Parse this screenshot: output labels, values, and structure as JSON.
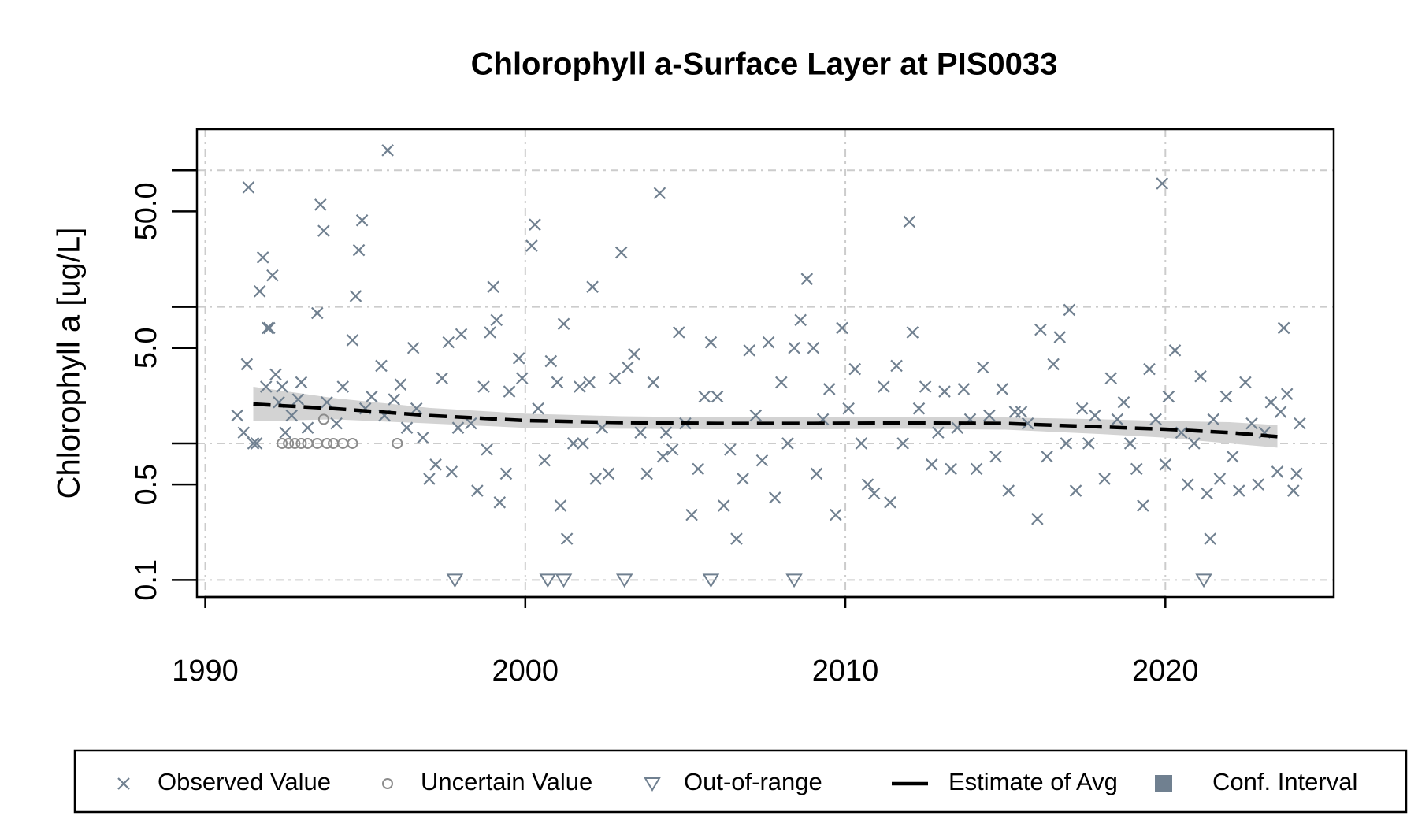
{
  "chart_data": {
    "type": "scatter",
    "title": "Chlorophyll a-Surface Layer at PIS0033",
    "y_label": "Chlorophyll a [ug/L]",
    "y_scale": "log",
    "grid": true,
    "xlim": [
      1989.74,
      2025.26
    ],
    "ylim": [
      0.075,
      200
    ],
    "xticks": [
      1990,
      2000,
      2010,
      2020
    ],
    "yticks": [
      {
        "value": 0.1,
        "label": "0.1"
      },
      {
        "value": 0.5,
        "label": "0.5"
      },
      {
        "value": 5,
        "label": "5.0"
      },
      {
        "value": 50,
        "label": "50.0"
      }
    ],
    "yminor_ticks": [
      1,
      10,
      100
    ],
    "legend_position": "bottom",
    "series": [
      {
        "name": "Observed Value",
        "marker": "x",
        "color": "#708090",
        "x": [
          1991.0,
          1991.2,
          1991.3,
          1991.35,
          1991.5,
          1991.6,
          1991.7,
          1991.8,
          1991.9,
          1991.95,
          1992.0,
          1992.1,
          1992.2,
          1992.3,
          1992.4,
          1992.5,
          1992.7,
          1992.9,
          1993.0,
          1993.2,
          1993.5,
          1993.6,
          1993.7,
          1993.8,
          1994.1,
          1994.3,
          1994.6,
          1994.7,
          1994.8,
          1994.9,
          1995.0,
          1995.2,
          1995.5,
          1995.6,
          1995.7,
          1995.9,
          1996.1,
          1996.3,
          1996.5,
          1996.6,
          1996.8,
          1997.0,
          1997.2,
          1997.4,
          1997.6,
          1997.7,
          1997.9,
          1998.0,
          1998.3,
          1998.5,
          1998.7,
          1998.8,
          1998.9,
          1999.0,
          1999.1,
          1999.2,
          1999.4,
          1999.5,
          1999.8,
          1999.9,
          2000.2,
          2000.3,
          2000.4,
          2000.6,
          2000.8,
          2001.0,
          2001.1,
          2001.2,
          2001.3,
          2001.5,
          2001.7,
          2001.8,
          2002.0,
          2002.1,
          2002.2,
          2002.4,
          2002.6,
          2002.8,
          2003.0,
          2003.2,
          2003.4,
          2003.6,
          2003.8,
          2004.0,
          2004.2,
          2004.3,
          2004.4,
          2004.6,
          2004.8,
          2005.0,
          2005.2,
          2005.4,
          2005.6,
          2005.8,
          2006.0,
          2006.2,
          2006.4,
          2006.6,
          2006.8,
          2007.0,
          2007.2,
          2007.4,
          2007.6,
          2007.8,
          2008.0,
          2008.2,
          2008.4,
          2008.6,
          2008.8,
          2009.0,
          2009.1,
          2009.3,
          2009.5,
          2009.7,
          2009.9,
          2010.1,
          2010.3,
          2010.5,
          2010.7,
          2010.9,
          2011.2,
          2011.4,
          2011.6,
          2011.8,
          2012.0,
          2012.1,
          2012.3,
          2012.5,
          2012.7,
          2012.9,
          2013.1,
          2013.3,
          2013.5,
          2013.7,
          2013.9,
          2014.1,
          2014.3,
          2014.5,
          2014.7,
          2014.9,
          2015.1,
          2015.3,
          2015.5,
          2015.7,
          2016.0,
          2016.1,
          2016.3,
          2016.5,
          2016.7,
          2016.9,
          2017.0,
          2017.2,
          2017.4,
          2017.6,
          2017.8,
          2018.1,
          2018.3,
          2018.5,
          2018.7,
          2018.9,
          2019.1,
          2019.3,
          2019.5,
          2019.7,
          2019.9,
          2020.0,
          2020.1,
          2020.3,
          2020.5,
          2020.7,
          2020.9,
          2021.1,
          2021.3,
          2021.4,
          2021.5,
          2021.7,
          2021.9,
          2022.1,
          2022.3,
          2022.5,
          2022.7,
          2022.9,
          2023.1,
          2023.3,
          2023.5,
          2023.6,
          2023.7,
          2023.8,
          2024.0,
          2024.1,
          2024.2
        ],
        "values": [
          1.6,
          1.2,
          3.8,
          75,
          1.0,
          1.0,
          13,
          23,
          2.6,
          7,
          7,
          17,
          3.2,
          2.0,
          2.6,
          1.2,
          1.6,
          2.1,
          2.8,
          1.3,
          9,
          56,
          36,
          2.0,
          1.4,
          2.6,
          5.7,
          12,
          26,
          43,
          1.8,
          2.2,
          3.7,
          1.6,
          140,
          2.1,
          2.7,
          1.3,
          5.0,
          1.8,
          1.1,
          0.55,
          0.7,
          3.0,
          5.5,
          0.62,
          1.3,
          6.3,
          1.4,
          0.45,
          2.6,
          0.9,
          6.5,
          14,
          8,
          0.37,
          0.6,
          2.4,
          4.2,
          3.0,
          28,
          40,
          1.8,
          0.75,
          4.0,
          2.8,
          0.35,
          7.5,
          0.2,
          1.0,
          2.6,
          1.0,
          2.8,
          14,
          0.55,
          1.3,
          0.6,
          3.0,
          25,
          3.6,
          4.5,
          1.2,
          0.6,
          2.8,
          68,
          0.8,
          1.2,
          0.9,
          6.5,
          1.4,
          0.3,
          0.65,
          2.2,
          5.5,
          2.2,
          0.35,
          0.9,
          0.2,
          0.55,
          4.8,
          1.6,
          0.75,
          5.5,
          0.4,
          2.8,
          1.0,
          5.0,
          8,
          16,
          5.0,
          0.6,
          1.5,
          2.5,
          0.3,
          7,
          1.8,
          3.5,
          1.0,
          0.5,
          0.43,
          2.6,
          0.37,
          3.7,
          1.0,
          42,
          6.5,
          1.8,
          2.6,
          0.7,
          1.2,
          2.4,
          0.65,
          1.3,
          2.5,
          1.5,
          0.65,
          3.6,
          1.6,
          0.8,
          2.5,
          0.45,
          1.7,
          1.7,
          1.4,
          0.28,
          6.8,
          0.8,
          3.8,
          6.0,
          1.0,
          9.5,
          0.45,
          1.8,
          1.0,
          1.6,
          0.55,
          3.0,
          1.5,
          2.0,
          1.0,
          0.65,
          0.35,
          3.5,
          1.5,
          80,
          0.7,
          2.2,
          4.8,
          1.2,
          0.5,
          1.0,
          3.1,
          0.43,
          0.2,
          1.5,
          0.55,
          2.2,
          0.8,
          0.45,
          2.8,
          1.4,
          0.5,
          1.2,
          2.0,
          0.62,
          1.7,
          7,
          2.3,
          0.45,
          0.6,
          1.4
        ]
      },
      {
        "name": "Uncertain Value",
        "marker": "circle",
        "color": "#8c8c8c",
        "x": [
          1992.4,
          1992.6,
          1992.8,
          1993.0,
          1993.2,
          1993.5,
          1993.7,
          1993.8,
          1994.0,
          1994.3,
          1994.6,
          1996.0
        ],
        "values": [
          1.0,
          1.0,
          1.0,
          1.0,
          1.0,
          1.0,
          1.5,
          1.0,
          1.0,
          1.0,
          1.0,
          1.0
        ]
      },
      {
        "name": "Out-of-range",
        "marker": "triangle",
        "color": "#708090",
        "x": [
          1997.8,
          2000.7,
          2001.2,
          2003.1,
          2005.8,
          2008.4,
          2021.2
        ],
        "values": [
          0.1,
          0.1,
          0.1,
          0.1,
          0.1,
          0.1,
          0.1
        ]
      },
      {
        "name": "Estimate of Avg",
        "marker": "line",
        "color": "#000000",
        "x": [
          1991.5,
          1994,
          1997,
          2000,
          2003,
          2006,
          2009,
          2012,
          2015,
          2018,
          2020,
          2022,
          2023.5
        ],
        "values": [
          1.94,
          1.8,
          1.6,
          1.47,
          1.42,
          1.4,
          1.4,
          1.41,
          1.4,
          1.32,
          1.27,
          1.2,
          1.12
        ]
      },
      {
        "name": "Conf. Interval",
        "marker": "area",
        "color": "#d3d3d3",
        "legend_color": "#708090",
        "x": [
          1991.5,
          1994,
          1997,
          2000,
          2003,
          2006,
          2009,
          2012,
          2015,
          2018,
          2020,
          2022,
          2023.5
        ],
        "lower": [
          1.45,
          1.5,
          1.4,
          1.3,
          1.28,
          1.27,
          1.27,
          1.28,
          1.26,
          1.17,
          1.1,
          1.0,
          0.93
        ],
        "upper": [
          2.6,
          2.15,
          1.82,
          1.65,
          1.58,
          1.55,
          1.55,
          1.56,
          1.55,
          1.5,
          1.46,
          1.43,
          1.36
        ]
      }
    ]
  }
}
